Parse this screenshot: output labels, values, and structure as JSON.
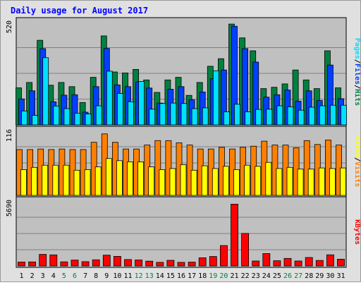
{
  "chart_data": {
    "type": "bar",
    "title": "Daily usage for August 2017",
    "categories": [
      "1",
      "2",
      "3",
      "4",
      "5",
      "6",
      "7",
      "8",
      "9",
      "10",
      "11",
      "12",
      "13",
      "14",
      "15",
      "16",
      "17",
      "18",
      "19",
      "20",
      "21",
      "22",
      "23",
      "24",
      "25",
      "26",
      "27",
      "28",
      "29",
      "30",
      "31"
    ],
    "weekend_days": [
      "5",
      "6",
      "12",
      "13",
      "19",
      "20",
      "26",
      "27"
    ],
    "panels": [
      {
        "id": "hits",
        "max_label": "520",
        "ylim": [
          0,
          520
        ],
        "legend": [
          "Pages",
          "/",
          "Files",
          "/",
          "Hits"
        ],
        "series": [
          {
            "name": "Hits",
            "color": "#008040",
            "values": [
              187,
              214,
              427,
              200,
              214,
              193,
              113,
              240,
              449,
              267,
              262,
              280,
              227,
              164,
              227,
              240,
              149,
              214,
              296,
              334,
              509,
              439,
              374,
              183,
              190,
              207,
              277,
              227,
              183,
              374,
              187
            ]
          },
          {
            "name": "Files",
            "color": "#0040ff",
            "values": [
              131,
              172,
              385,
              117,
              150,
              152,
              64,
              193,
              386,
              202,
              193,
              217,
              186,
              110,
              180,
              193,
              126,
              166,
              233,
              277,
              498,
              385,
              317,
              140,
              152,
              176,
              120,
              172,
              123,
              302,
              132
            ]
          },
          {
            "name": "Pages",
            "color": "#00e0ff",
            "values": [
              70,
              48,
              339,
              95,
              82,
              59,
              55,
              96,
              271,
              159,
              117,
              219,
              79,
              108,
              110,
              108,
              82,
              86,
              273,
              66,
              104,
              66,
              78,
              79,
              96,
              91,
              74,
              89,
              96,
              99,
              99
            ]
          }
        ]
      },
      {
        "id": "visits",
        "max_label": "116",
        "ylim": [
          0,
          116
        ],
        "legend": [
          "Sites",
          "/",
          "Visits"
        ],
        "series": [
          {
            "name": "Visits",
            "color": "#ff8000",
            "values": [
              82,
              82,
              83,
              82,
              83,
              82,
              82,
              95,
              110,
              95,
              83,
              83,
              90,
              98,
              98,
              94,
              90,
              83,
              83,
              86,
              83,
              86,
              88,
              97,
              90,
              90,
              85,
              98,
              91,
              99,
              90
            ]
          },
          {
            "name": "Sites",
            "color": "#ffff00",
            "values": [
              46,
              50,
              54,
              54,
              54,
              45,
              46,
              51,
              66,
              62,
              60,
              60,
              51,
              46,
              48,
              55,
              45,
              53,
              48,
              52,
              46,
              54,
              52,
              59,
              48,
              50,
              47,
              47,
              49,
              48,
              49
            ]
          }
        ]
      },
      {
        "id": "kbytes",
        "max_label": "5690",
        "ylim": [
          0,
          5690
        ],
        "legend": [
          "KBytes"
        ],
        "series": [
          {
            "name": "KBytes",
            "color": "#ff0000",
            "values": [
              340,
              350,
              1015,
              970,
              360,
              515,
              380,
              540,
              945,
              840,
              560,
              525,
              420,
              315,
              495,
              315,
              335,
              720,
              830,
              1790,
              5420,
              2850,
              430,
              1090,
              455,
              660,
              430,
              740,
              485,
              975,
              595
            ]
          }
        ]
      }
    ]
  },
  "colors": {
    "title": "#0000ff",
    "weekend_label": "#008040",
    "weekday_label": "#000000",
    "plot_bg": "#c0c0c0",
    "gridline": "#808080",
    "axis_label": "#000000",
    "separator": "#000000"
  }
}
